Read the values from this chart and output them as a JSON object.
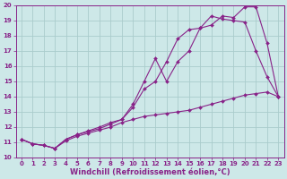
{
  "xlabel": "Windchill (Refroidissement éolien,°C)",
  "xlim": [
    -0.5,
    23.5
  ],
  "ylim": [
    10,
    20
  ],
  "xticks": [
    0,
    1,
    2,
    3,
    4,
    5,
    6,
    7,
    8,
    9,
    10,
    11,
    12,
    13,
    14,
    15,
    16,
    17,
    18,
    19,
    20,
    21,
    22,
    23
  ],
  "yticks": [
    10,
    11,
    12,
    13,
    14,
    15,
    16,
    17,
    18,
    19,
    20
  ],
  "bg_color": "#cde8e8",
  "grid_color": "#aacccc",
  "line_color": "#882288",
  "line1_x": [
    0,
    1,
    2,
    3,
    4,
    5,
    6,
    7,
    8,
    9,
    10,
    11,
    12,
    13,
    14,
    15,
    16,
    17,
    18,
    19,
    20,
    21,
    22,
    23
  ],
  "line1_y": [
    11.2,
    10.9,
    10.8,
    10.6,
    11.2,
    11.5,
    11.75,
    12.0,
    12.3,
    12.5,
    13.3,
    14.5,
    15.0,
    16.3,
    17.8,
    18.4,
    18.5,
    18.7,
    19.3,
    19.2,
    19.9,
    19.9,
    17.5,
    14.0
  ],
  "line2_x": [
    0,
    1,
    2,
    3,
    4,
    5,
    6,
    7,
    8,
    9,
    10,
    11,
    12,
    13,
    14,
    15,
    16,
    17,
    18,
    19,
    20,
    21,
    22,
    23
  ],
  "line2_y": [
    11.2,
    10.9,
    10.8,
    10.6,
    11.2,
    11.5,
    11.7,
    11.9,
    12.2,
    12.5,
    13.5,
    15.0,
    16.5,
    15.0,
    16.3,
    17.0,
    18.5,
    19.3,
    19.1,
    19.0,
    18.9,
    17.0,
    15.3,
    14.0
  ],
  "line3_x": [
    0,
    1,
    2,
    3,
    4,
    5,
    6,
    7,
    8,
    9,
    10,
    11,
    12,
    13,
    14,
    15,
    16,
    17,
    18,
    19,
    20,
    21,
    22,
    23
  ],
  "line3_y": [
    11.2,
    10.9,
    10.8,
    10.6,
    11.1,
    11.4,
    11.6,
    11.8,
    12.0,
    12.3,
    12.5,
    12.7,
    12.8,
    12.9,
    13.0,
    13.1,
    13.3,
    13.5,
    13.7,
    13.9,
    14.1,
    14.2,
    14.3,
    14.0
  ],
  "marker": "D",
  "markersize": 2.0,
  "linewidth": 0.8,
  "tick_fontsize": 5.0,
  "xlabel_fontsize": 6.0
}
